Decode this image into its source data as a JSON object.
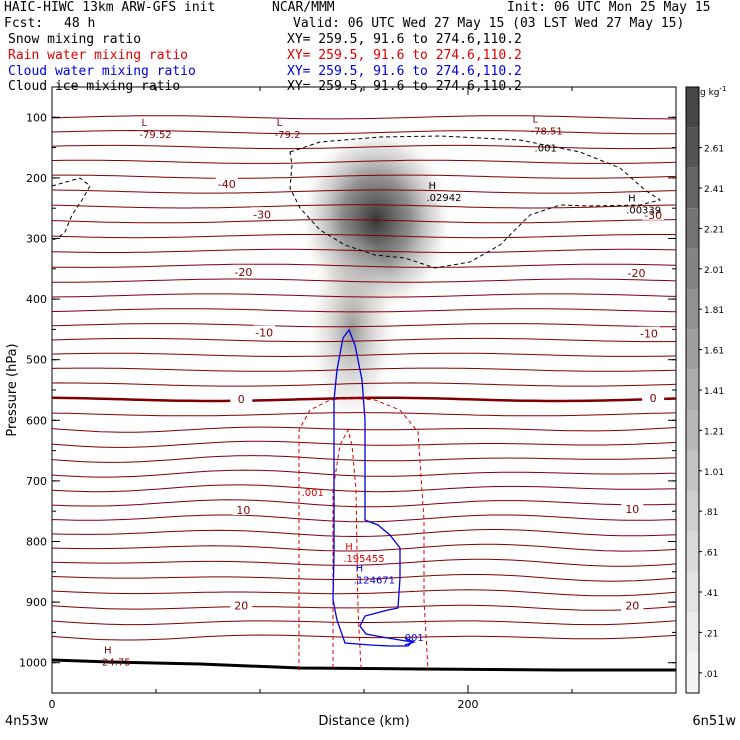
{
  "header": {
    "model": "HAIC-HIWC 13km ARW-GFS init",
    "org": "NCAR/MMM",
    "init": "Init: 06 UTC Mon 25 May 15",
    "fcst_label": "Fcst:",
    "fcst_value": "48 h",
    "valid": "Valid: 06 UTC Wed 27 May 15 (03 LST Wed 27 May 15)",
    "fields": [
      {
        "name": "Snow mixing ratio",
        "xy": "XY= 259.5, 91.6 to 274.6,110.2",
        "color": "#000000"
      },
      {
        "name": "Rain water mixing ratio",
        "xy": "XY= 259.5, 91.6 to 274.6,110.2",
        "color": "#e00000"
      },
      {
        "name": "Cloud water mixing ratio",
        "xy": "XY= 259.5, 91.6 to 274.6,110.2",
        "color": "#0000e0"
      },
      {
        "name": "Cloud ice mixing ratio",
        "xy": "XY= 259.5, 91.6 to 274.6,110.2",
        "color": "#000000"
      }
    ]
  },
  "chart_data": {
    "type": "contour cross-section",
    "xlabel": "Distance (km)",
    "ylabel": "Pressure (hPa)",
    "xlim": [
      0,
      300
    ],
    "x_ticks": [
      0,
      200
    ],
    "ylim": [
      1050,
      50
    ],
    "y_ticks": [
      100,
      200,
      300,
      400,
      500,
      600,
      700,
      800,
      900,
      1000
    ],
    "endpoints": {
      "left": "4n53w",
      "right": "6n51w"
    },
    "temperature_labels": [
      {
        "text": "-40",
        "x": 84,
        "p": 210
      },
      {
        "text": "-30",
        "x": 101,
        "p": 260
      },
      {
        "text": "-30",
        "x": 289,
        "p": 261
      },
      {
        "text": "-20",
        "x": 92,
        "p": 355
      },
      {
        "text": "-20",
        "x": 281,
        "p": 357
      },
      {
        "text": "-10",
        "x": 102,
        "p": 455
      },
      {
        "text": "-10",
        "x": 287,
        "p": 457
      },
      {
        "text": "0",
        "x": 91,
        "p": 565
      },
      {
        "text": "0",
        "x": 289,
        "p": 563
      },
      {
        "text": "10",
        "x": 92,
        "p": 748
      },
      {
        "text": "10",
        "x": 279,
        "p": 746
      },
      {
        "text": "20",
        "x": 91,
        "p": 906
      },
      {
        "text": "20",
        "x": 279,
        "p": 906
      }
    ],
    "extrema": [
      {
        "type": "L",
        "value": "-79.52",
        "x": 43,
        "p": 118,
        "color": "#800000"
      },
      {
        "type": "L",
        "value": "-79.2",
        "x": 108,
        "p": 118,
        "color": "#800000"
      },
      {
        "type": "L",
        "value": "-78.51",
        "x": 231,
        "p": 112,
        "color": "#800000"
      },
      {
        "type": "H",
        "value": ".02942",
        "x": 181,
        "p": 222,
        "color": "#000000"
      },
      {
        "type": "H",
        "value": ".00339",
        "x": 277,
        "p": 242,
        "color": "#000000"
      },
      {
        "type": "H",
        "value": ".195455",
        "x": 141,
        "p": 817,
        "color": "#e00000"
      },
      {
        "type": "H",
        "value": ".124671",
        "x": 146,
        "p": 853,
        "color": "#0000e0"
      },
      {
        "type": "H",
        "value": "24.75",
        "x": 25,
        "p": 988,
        "color": "#800000"
      }
    ],
    "contour_labels": [
      {
        "text": ".001",
        "x": 232,
        "p": 150,
        "color": "#000000"
      },
      {
        "text": ".001",
        "x": 120,
        "p": 718,
        "color": "#e00000"
      },
      {
        "text": ".001",
        "x": 168,
        "p": 958,
        "color": "#0000e0"
      }
    ],
    "colorbar": {
      "unit": "g kg",
      "unit_exp": "-1",
      "levels": [
        ".01",
        ".21",
        ".41",
        ".61",
        ".81",
        "1.01",
        "1.21",
        "1.41",
        "1.61",
        "1.81",
        "2.01",
        "2.21",
        "2.41",
        "2.61"
      ],
      "colors": [
        "#f4f4f4",
        "#ececec",
        "#e3e3e3",
        "#d9d9d9",
        "#cfcfcf",
        "#c4c4c4",
        "#b8b8b8",
        "#acacac",
        "#9f9f9f",
        "#919191",
        "#838383",
        "#747474",
        "#646464",
        "#545454",
        "#464646"
      ]
    },
    "grid": false,
    "legend": "right colorbar"
  }
}
